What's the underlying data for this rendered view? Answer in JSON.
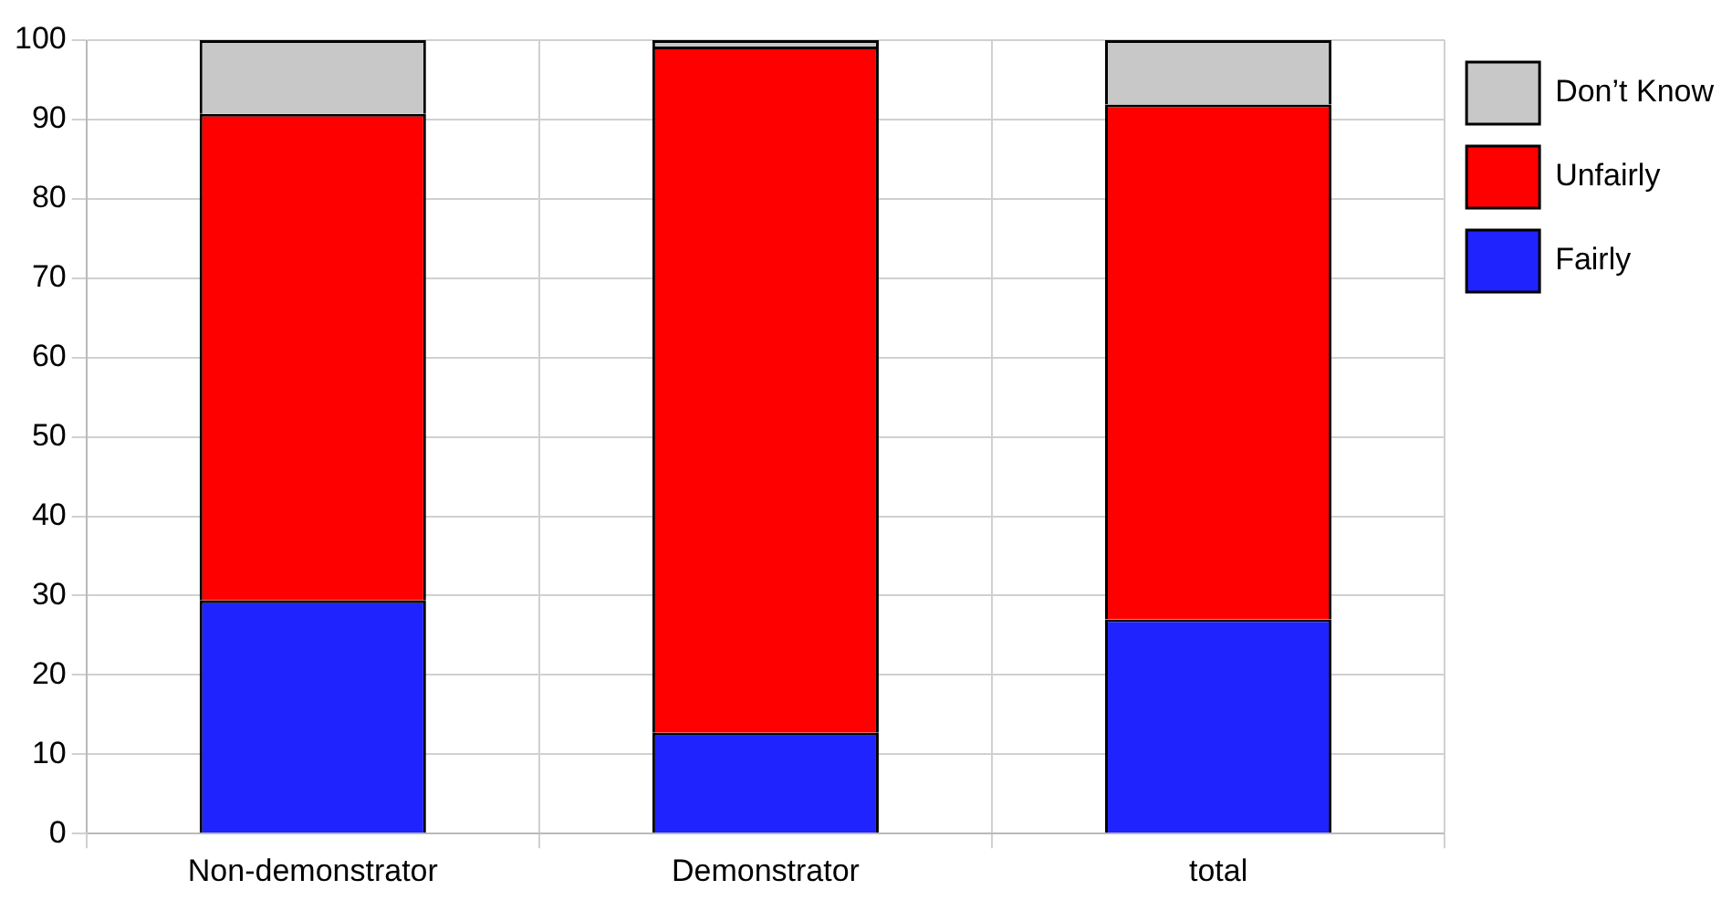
{
  "chart_data": {
    "type": "bar",
    "stacked": true,
    "categories": [
      "Non-demonstrator",
      "Demonstrator",
      "total"
    ],
    "series": [
      {
        "name": "Fairly",
        "color": "#1f24ff",
        "values": [
          29.4,
          12.7,
          27
        ]
      },
      {
        "name": "Unfairly",
        "color": "#ff0000",
        "values": [
          61.3,
          86.5,
          64.9
        ]
      },
      {
        "name": "Don’t Know",
        "color": "#c8c8c8",
        "values": [
          9.3,
          0.8,
          8.1
        ]
      }
    ],
    "ylim": [
      0,
      100
    ],
    "yticks": [
      0,
      10,
      20,
      30,
      40,
      50,
      60,
      70,
      80,
      90,
      100
    ],
    "grid": true,
    "legend": "top right"
  }
}
